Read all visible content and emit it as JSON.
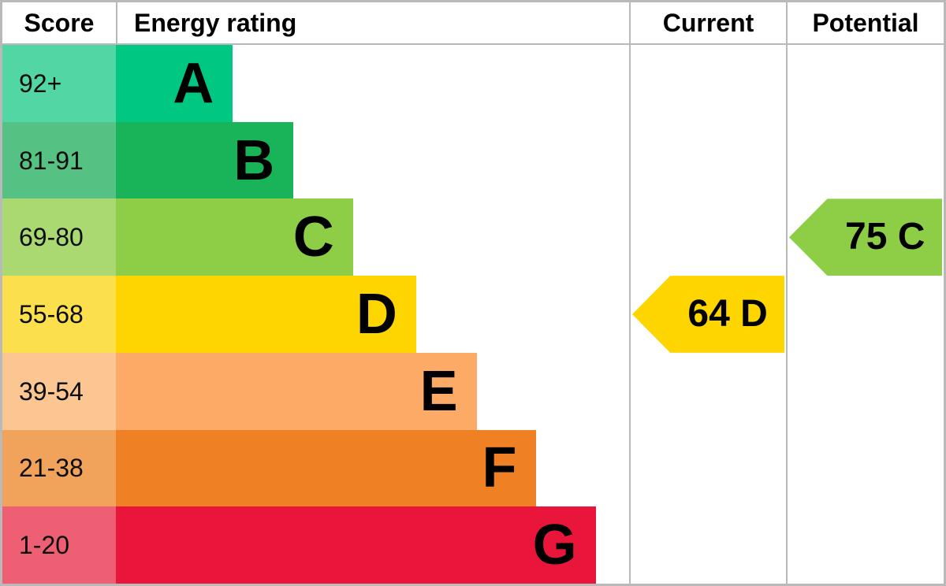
{
  "chart": {
    "headers": {
      "score": "Score",
      "energy": "Energy rating",
      "current": "Current",
      "potential": "Potential"
    }
  },
  "chart_data": {
    "type": "bar",
    "subtype": "epc-energy-rating-chart",
    "orientation": "horizontal",
    "columns": [
      "Score",
      "Energy rating",
      "Current",
      "Potential"
    ],
    "bands": [
      {
        "letter": "A",
        "score_range": "92+",
        "bar_color": "#00c781",
        "score_color": "#52d7a4",
        "bar_width_pct": 22.8
      },
      {
        "letter": "B",
        "score_range": "81-91",
        "bar_color": "#19b459",
        "score_color": "#55c284",
        "bar_width_pct": 34.6
      },
      {
        "letter": "C",
        "score_range": "69-80",
        "bar_color": "#8dce46",
        "score_color": "#aad971",
        "bar_width_pct": 46.2
      },
      {
        "letter": "D",
        "score_range": "55-68",
        "bar_color": "#ffd500",
        "score_color": "#fbdf4c",
        "bar_width_pct": 58.5
      },
      {
        "letter": "E",
        "score_range": "39-54",
        "bar_color": "#fcaa65",
        "score_color": "#fcc692",
        "bar_width_pct": 70.3
      },
      {
        "letter": "F",
        "score_range": "21-38",
        "bar_color": "#ef8023",
        "score_color": "#f2a35b",
        "bar_width_pct": 81.8
      },
      {
        "letter": "G",
        "score_range": "1-20",
        "bar_color": "#e9153b",
        "score_color": "#ee5f74",
        "bar_width_pct": 93.5
      }
    ],
    "current": {
      "value": 64,
      "band": "D",
      "label": "64 D",
      "color": "#ffd500"
    },
    "potential": {
      "value": 75,
      "band": "C",
      "label": "75 C",
      "color": "#8dce46"
    }
  },
  "colors": {
    "grid_line": "#b9b9b9",
    "background": "#ffffff",
    "text": "#000000"
  }
}
